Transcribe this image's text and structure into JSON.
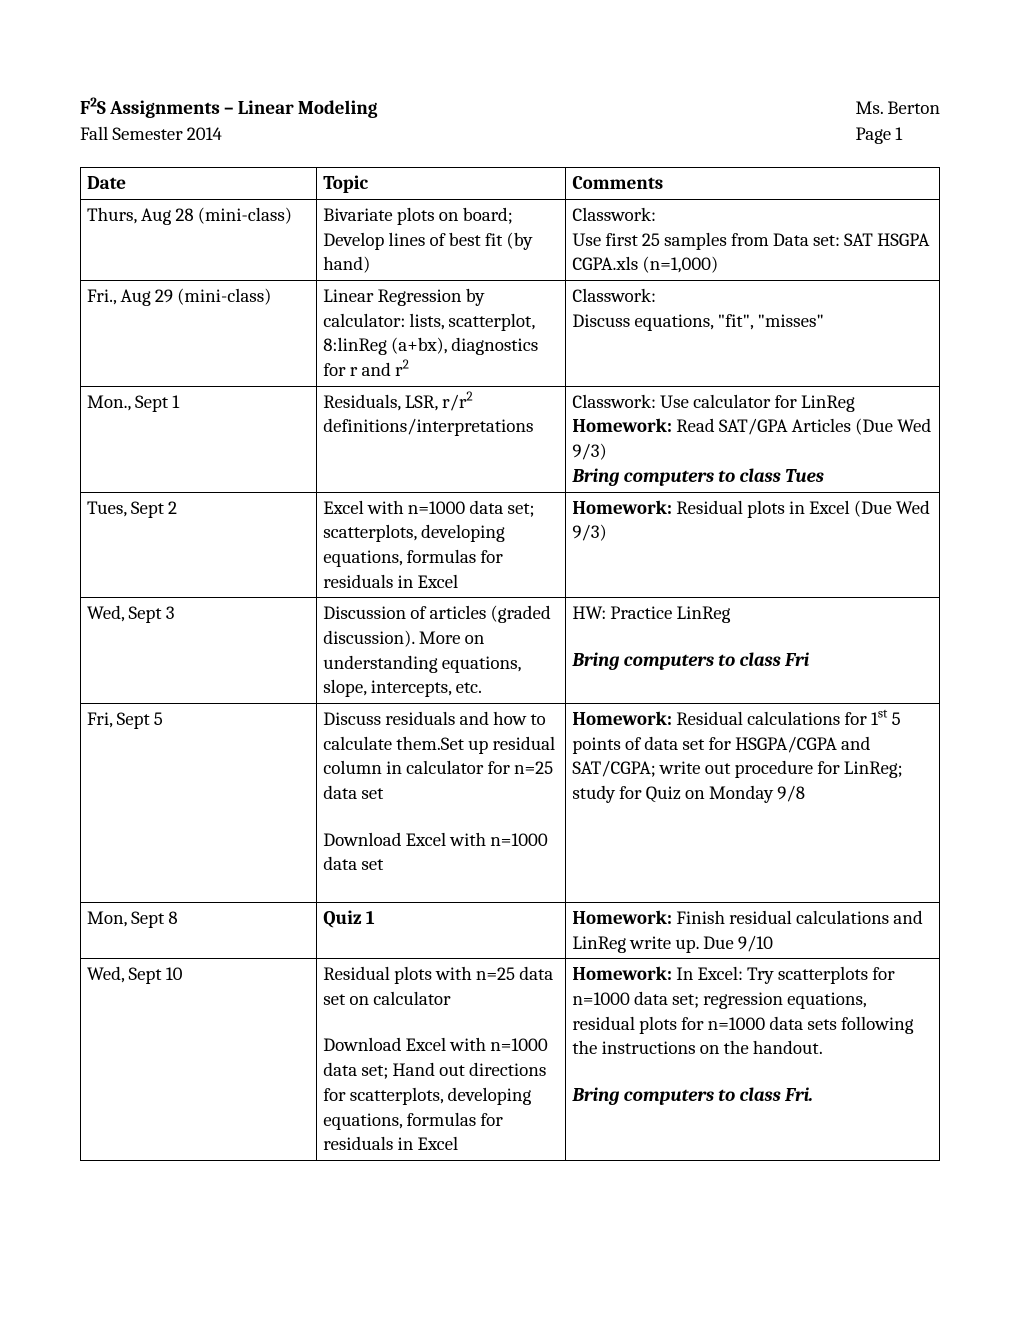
{
  "header": {
    "title_pre": "F",
    "title_sup": "2",
    "title_post": "S Assignments – Linear Modeling",
    "subtitle": "Fall Semester 2014",
    "teacher": "Ms. Berton",
    "page": "Page 1"
  },
  "columns": {
    "date": "Date",
    "topic": "Topic",
    "comments": "Comments"
  },
  "rows": [
    {
      "date": "Thurs, Aug 28 (mini-class)",
      "topic": [
        {
          "t": "Bivariate plots on board; Develop lines of best fit (by hand)"
        }
      ],
      "comments": [
        {
          "t": "Classwork:"
        },
        {
          "t": "Use first 25 samples from Data set: SAT HSGPA CGPA.xls (n=1,000)"
        }
      ]
    },
    {
      "date": "Fri., Aug 29 (mini-class)",
      "topic": [
        {
          "t_pre": "Linear Regression by calculator: lists, scatterplot, 8:linReg (a+bx), diagnostics for r and r",
          "sup": "2"
        }
      ],
      "comments": [
        {
          "t": "Classwork:"
        },
        {
          "t": "Discuss equations, \"fit\", \"misses\""
        }
      ]
    },
    {
      "date": "Mon., Sept 1",
      "topic": [
        {
          "t_pre": "Residuals, LSR, r/r",
          "sup": "2",
          "t_post": " definitions/interpretations"
        }
      ],
      "comments": [
        {
          "t": "Classwork: Use calculator for LinReg"
        },
        {
          "b": "Homework:",
          "t": " Read SAT/GPA Articles (Due Wed 9/3)"
        },
        {
          "bi": "Bring computers to class Tues"
        }
      ]
    },
    {
      "date": "Tues, Sept 2",
      "topic": [
        {
          "t": "Excel with n=1000 data set; scatterplots, developing equations, formulas for residuals in Excel"
        }
      ],
      "comments": [
        {
          "b": "Homework:",
          "t": " Residual plots in Excel (Due Wed 9/3)"
        }
      ]
    },
    {
      "date": "Wed, Sept 3",
      "topic": [
        {
          "t": "Discussion of articles (graded discussion). More on understanding equations, slope, intercepts, etc."
        }
      ],
      "comments": [
        {
          "t": "HW: Practice LinReg"
        },
        {
          "gap": true
        },
        {
          "bi": "Bring computers to class Fri"
        }
      ]
    },
    {
      "date": "Fri, Sept 5",
      "topic": [
        {
          "t": "Discuss residuals and how to calculate them.Set up residual column in calculator for n=25 data set"
        },
        {
          "gap": true
        },
        {
          "t": "Download Excel with n=1000 data set"
        },
        {
          "gap": true
        }
      ],
      "comments": [
        {
          "b": "Homework:",
          "t_pre": " Residual calculations for 1",
          "supst": "st",
          "t_post": " 5 points of data set for HSGPA/CGPA and SAT/CGPA; write out procedure for LinReg; study for Quiz on Monday 9/8"
        }
      ]
    },
    {
      "date": "Mon, Sept 8",
      "topic": [
        {
          "b": "Quiz 1"
        }
      ],
      "comments": [
        {
          "b": "Homework:",
          "t": " Finish residual calculations and LinReg write up. Due 9/10"
        }
      ]
    },
    {
      "date": "Wed, Sept 10",
      "topic": [
        {
          "t": "Residual plots with n=25 data set on calculator"
        },
        {
          "gap": true
        },
        {
          "t": "Download Excel with n=1000 data set; Hand out directions for scatterplots, developing equations, formulas for residuals in Excel"
        }
      ],
      "comments": [
        {
          "b": "Homework:",
          "t": " In Excel: Try scatterplots for n=1000 data set; regression equations, residual plots for n=1000 data sets following the instructions on the handout."
        },
        {
          "gap": true
        },
        {
          "bi": "Bring computers to class Fri."
        }
      ]
    }
  ]
}
